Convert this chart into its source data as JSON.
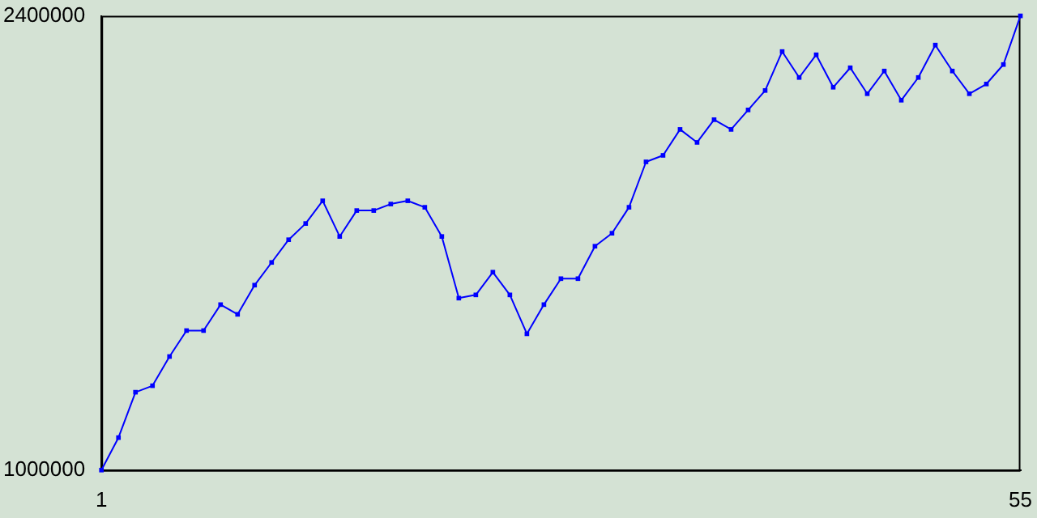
{
  "chart_data": {
    "type": "line",
    "x": [
      1,
      2,
      3,
      4,
      5,
      6,
      7,
      8,
      9,
      10,
      11,
      12,
      13,
      14,
      15,
      16,
      17,
      18,
      19,
      20,
      21,
      22,
      23,
      24,
      25,
      26,
      27,
      28,
      29,
      30,
      31,
      32,
      33,
      34,
      35,
      36,
      37,
      38,
      39,
      40,
      41,
      42,
      43,
      44,
      45,
      46,
      47,
      48,
      49,
      50,
      51,
      52,
      53,
      54,
      55
    ],
    "series": [
      {
        "color": "#0000ff",
        "values": [
          1000000,
          1100000,
          1240000,
          1260000,
          1350000,
          1430000,
          1430000,
          1510000,
          1480000,
          1570000,
          1640000,
          1710000,
          1760000,
          1830000,
          1720000,
          1800000,
          1800000,
          1820000,
          1830000,
          1810000,
          1720000,
          1530000,
          1540000,
          1610000,
          1540000,
          1420000,
          1510000,
          1590000,
          1590000,
          1690000,
          1730000,
          1810000,
          1950000,
          1970000,
          2050000,
          2010000,
          2080000,
          2050000,
          2110000,
          2170000,
          2290000,
          2210000,
          2280000,
          2180000,
          2240000,
          2160000,
          2230000,
          2140000,
          2210000,
          2310000,
          2230000,
          2160000,
          2190000,
          2250000,
          2400000
        ]
      }
    ],
    "xlim": [
      1,
      55
    ],
    "xticks": [
      1,
      55
    ],
    "ylim": [
      1000000,
      2400000
    ],
    "yticks": [
      1000000,
      2400000
    ],
    "grid": false,
    "legend": false,
    "marker": "square",
    "line_style": "solid"
  }
}
